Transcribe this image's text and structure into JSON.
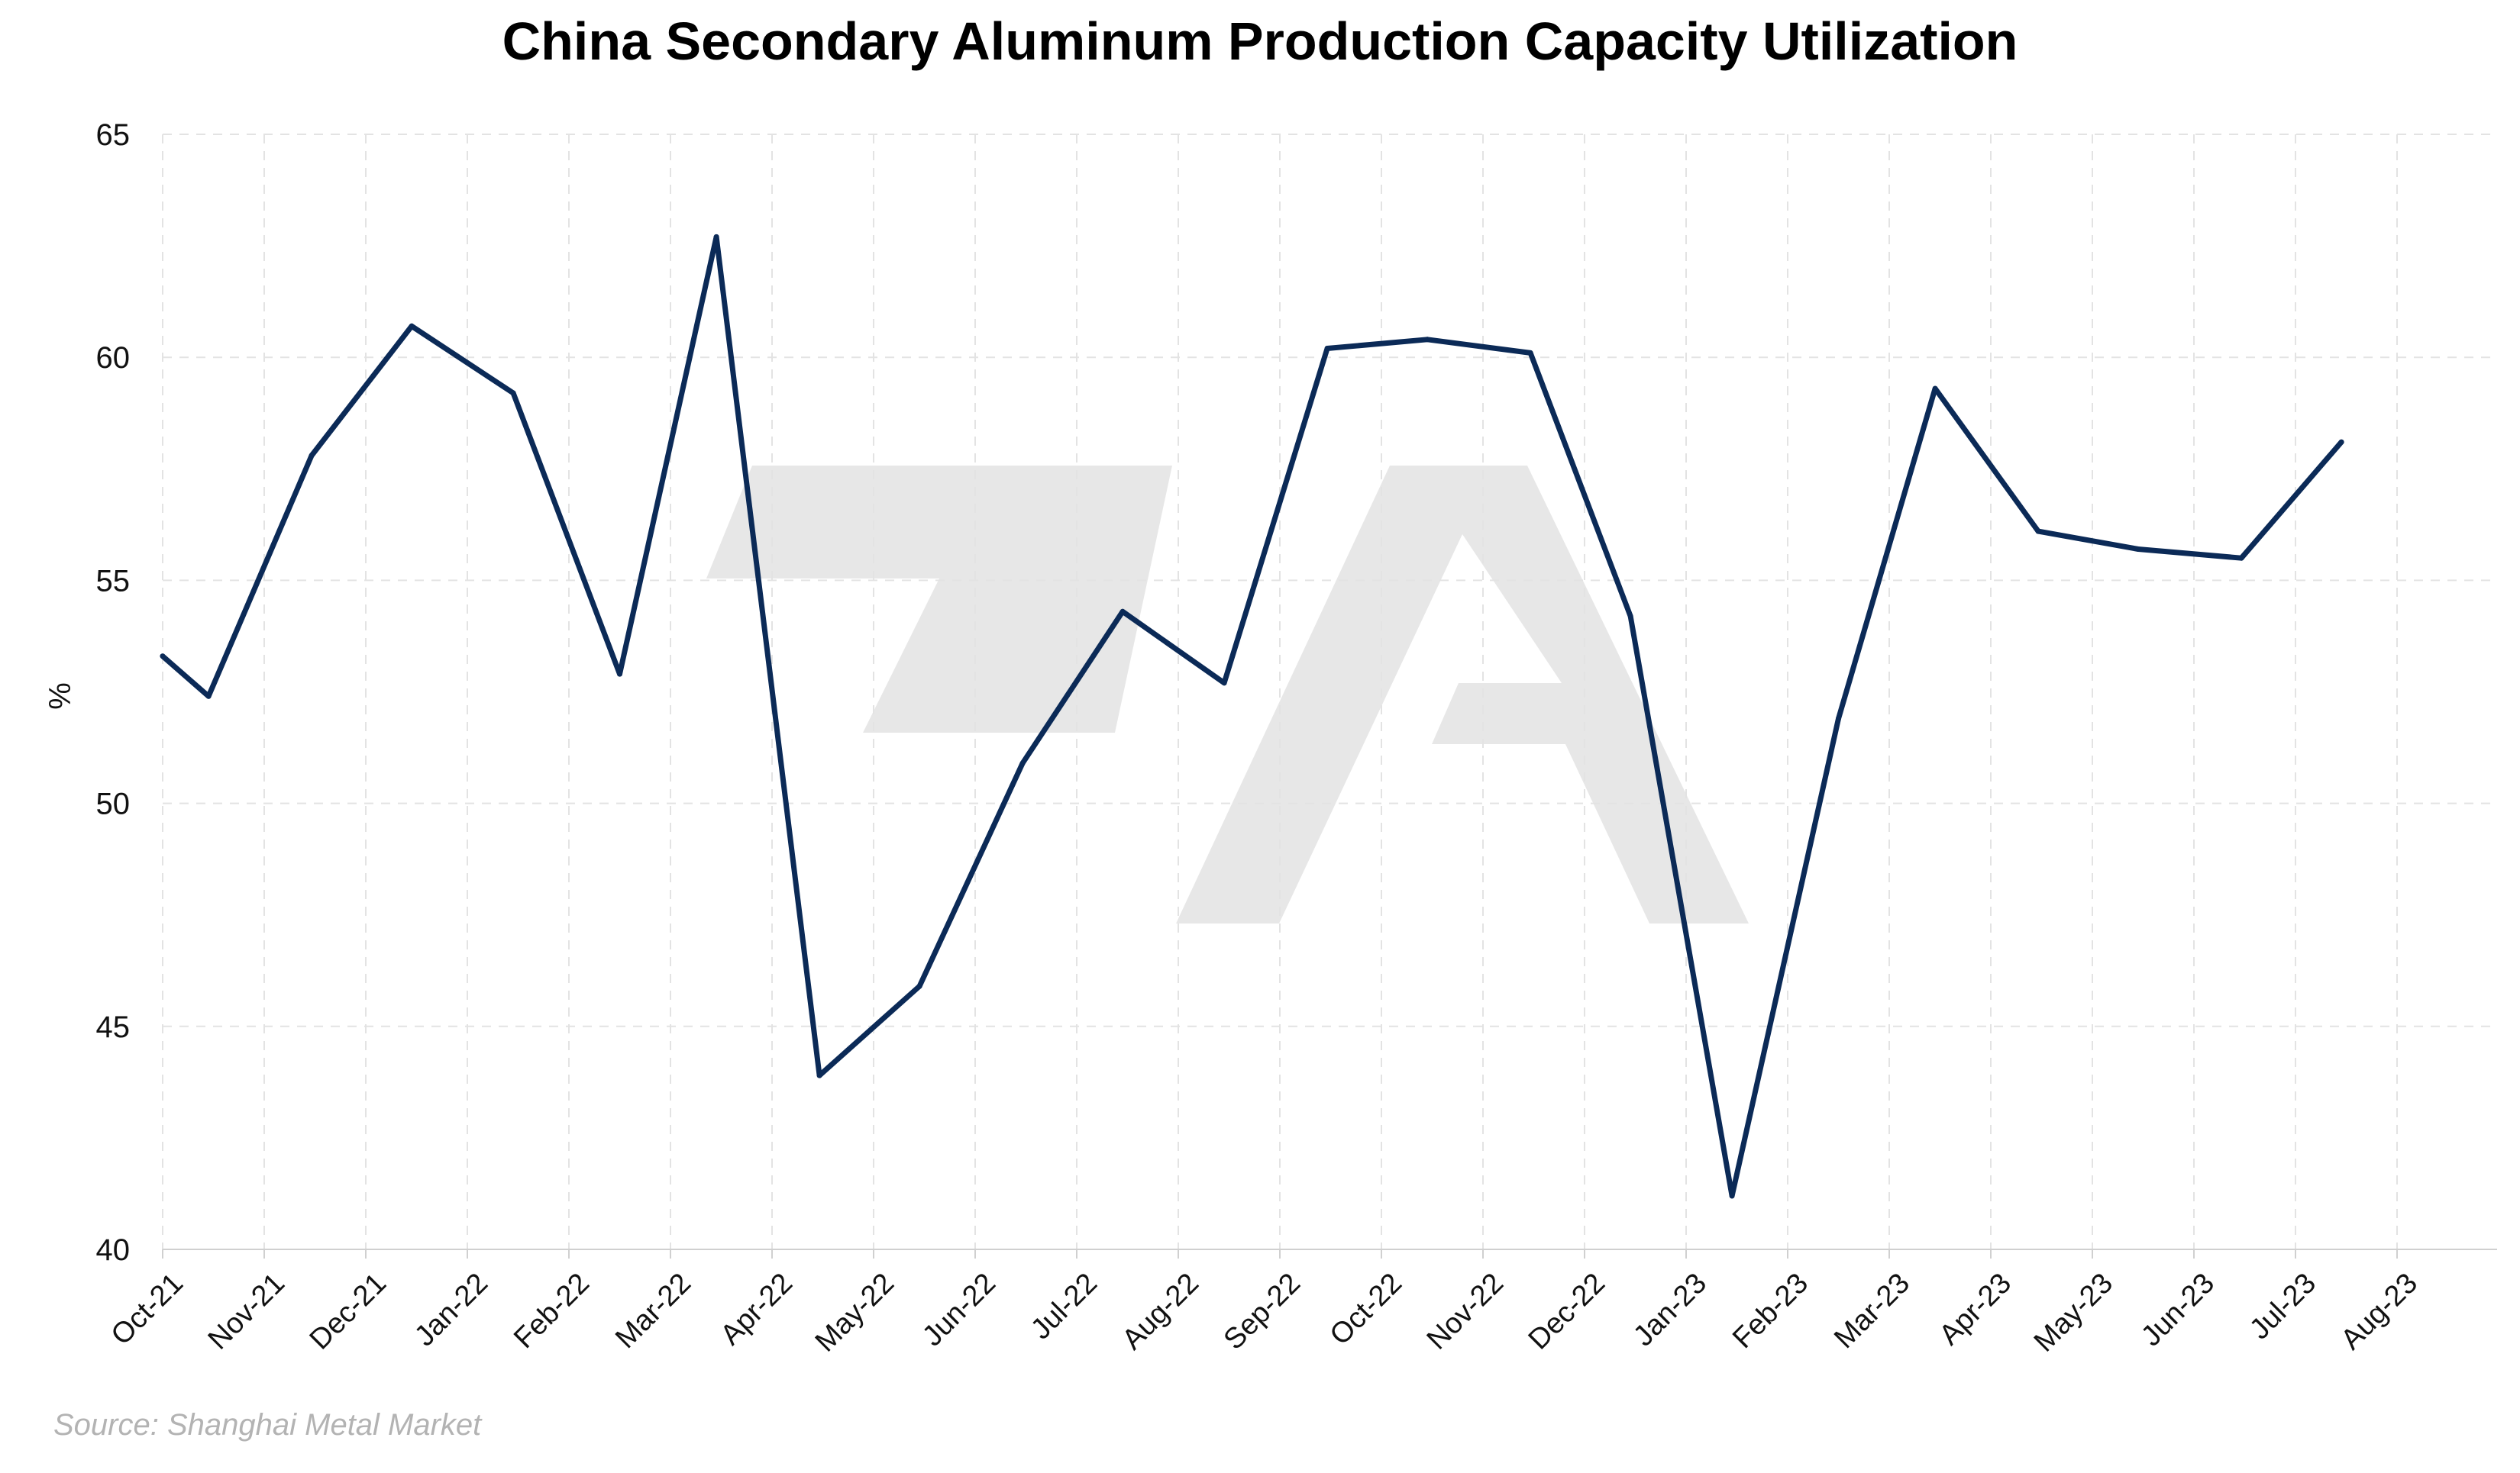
{
  "colors": {
    "line": "#0b2a57",
    "watermark": "#e7e7e7",
    "grid": "#e3e3e3",
    "source_text": "#b3b3b3"
  },
  "watermark": {
    "icon": "za-logo-watermark"
  },
  "source": "Source: Shanghai Metal Market",
  "chart_data": {
    "type": "line",
    "title": "China Secondary Aluminum Production Capacity Utilization",
    "xlabel": "",
    "ylabel": "%",
    "ylim": [
      40,
      65
    ],
    "yticks": [
      40,
      45,
      50,
      55,
      60,
      65
    ],
    "xticks": [
      "Oct-21",
      "Nov-21",
      "Dec-21",
      "Jan-22",
      "Feb-22",
      "Mar-22",
      "Apr-22",
      "May-22",
      "Jun-22",
      "Jul-22",
      "Aug-22",
      "Sep-22",
      "Oct-22",
      "Nov-22",
      "Dec-22",
      "Jan-23",
      "Feb-23",
      "Mar-23",
      "Apr-23",
      "May-23",
      "Jun-23",
      "Jul-23",
      "Aug-23"
    ],
    "grid": true,
    "legend": "none",
    "series": [
      {
        "x": [
          "2021-10-01",
          "2021-10-15",
          "2021-11-15",
          "2021-12-15",
          "2022-01-15",
          "2022-02-15",
          "2022-03-15",
          "2022-04-15",
          "2022-05-15",
          "2022-06-15",
          "2022-07-15",
          "2022-08-15",
          "2022-09-15",
          "2022-10-15",
          "2022-11-15",
          "2022-12-15",
          "2023-01-15",
          "2023-02-15",
          "2023-03-15",
          "2023-04-15",
          "2023-05-15",
          "2023-06-15",
          "2023-07-15"
        ],
        "values": [
          53.3,
          52.4,
          57.8,
          60.7,
          59.2,
          52.9,
          62.7,
          43.9,
          45.9,
          50.9,
          54.3,
          52.7,
          60.2,
          60.4,
          60.1,
          54.2,
          41.2,
          51.9,
          59.3,
          56.1,
          55.7,
          55.5,
          58.1
        ]
      }
    ]
  }
}
